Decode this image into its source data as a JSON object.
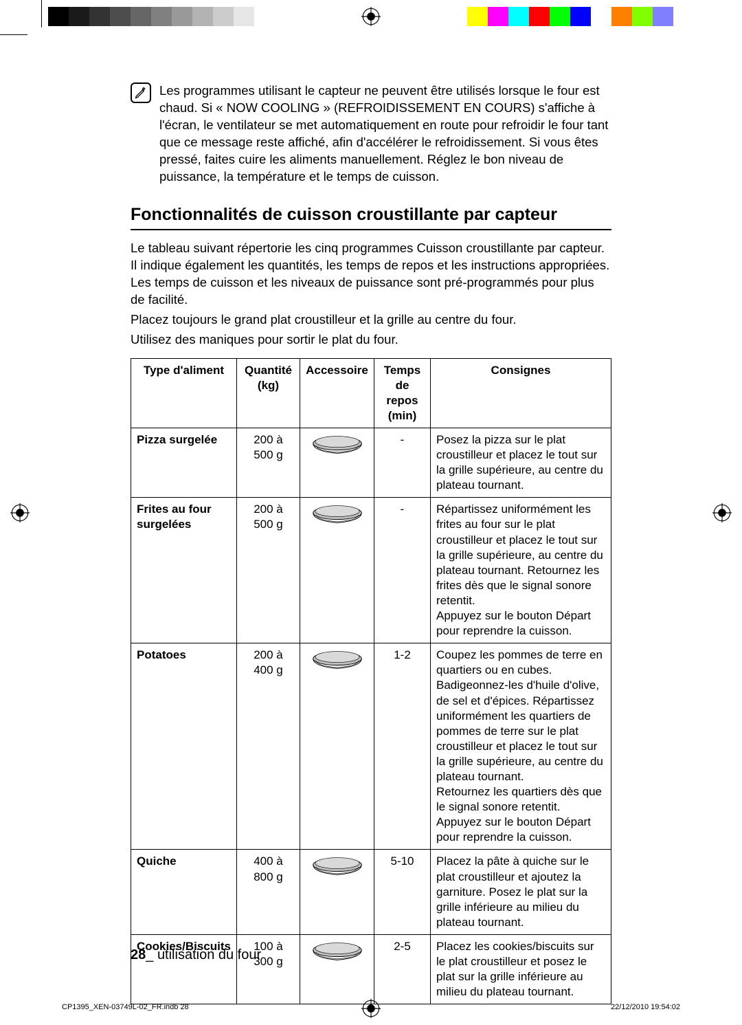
{
  "calibration": {
    "grayscale": [
      "#000000",
      "#1a1a1a",
      "#333333",
      "#4d4d4d",
      "#666666",
      "#808080",
      "#999999",
      "#b3b3b3",
      "#cccccc",
      "#e6e6e6",
      "#ffffff"
    ],
    "colors": [
      "#ffff00",
      "#ff00ff",
      "#00ffff",
      "#ff0000",
      "#00ff00",
      "#0000ff",
      "#ffffff",
      "#ff8000",
      "#80ff00",
      "#8080ff",
      "#ffffff"
    ]
  },
  "note": {
    "icon_name": "pencil-in-box-icon",
    "text": "Les programmes utilisant le capteur ne peuvent être utilisés lorsque le four est chaud. Si « NOW COOLING » (REFROIDISSEMENT EN COURS) s'affiche à l'écran, le ventilateur se met automatiquement en route pour refroidir le four tant que ce message reste affiché, afin d'accélérer le refroidissement. Si vous êtes pressé, faites cuire les aliments manuellement. Réglez le bon niveau de puissance, la température et le temps de cuisson."
  },
  "heading": "Fonctionnalités de cuisson croustillante par capteur",
  "intro": [
    "Le tableau suivant répertorie les cinq programmes Cuisson croustillante par capteur. Il indique également les quantités, les temps de repos et les instructions appropriées. Les temps de cuisson et les niveaux de puissance sont pré-programmés pour plus de facilité.",
    "Placez toujours le grand plat croustilleur et la grille au centre du four.",
    "Utilisez des maniques pour sortir le plat du four."
  ],
  "table": {
    "headers": {
      "type": "Type d'aliment",
      "qty": "Quantité (kg)",
      "acc": "Accessoire",
      "time": "Temps de repos (min)",
      "instr": "Consignes"
    },
    "rows": [
      {
        "type": "Pizza surgelée",
        "qty": "200 à 500 g",
        "time": "-",
        "instr": "Posez la pizza sur le plat croustilleur et placez le tout sur la grille supérieure, au centre du plateau tournant."
      },
      {
        "type": "Frites au four surgelées",
        "qty": "200 à 500 g",
        "time": "-",
        "instr": "Répartissez uniformément les frites au four sur le plat croustilleur et placez le tout sur la grille supérieure, au centre du plateau tournant. Retournez les frites dès que le signal sonore retentit.\nAppuyez sur le bouton Départ pour reprendre la cuisson."
      },
      {
        "type": "Potatoes",
        "qty": "200 à 400 g",
        "time": "1-2",
        "instr": "Coupez les pommes de terre en quartiers ou en cubes. Badigeonnez-les d'huile d'olive, de sel et d'épices. Répartissez uniformément les quartiers de pommes de terre sur le plat croustilleur et placez le tout sur la grille supérieure, au centre du plateau tournant.\nRetournez les quartiers dès que le signal sonore retentit. Appuyez sur le bouton Départ pour reprendre la cuisson."
      },
      {
        "type": "Quiche",
        "qty": "400 à 800 g",
        "time": "5-10",
        "instr": "Placez la pâte à quiche sur le plat croustilleur et ajoutez la garniture. Posez le plat sur la grille inférieure au milieu du plateau tournant."
      },
      {
        "type": "Cookies/Biscuits",
        "qty": "100 à 300 g",
        "time": "2-5",
        "instr": "Placez les cookies/biscuits sur le plat croustilleur et posez le plat sur la grille inférieure au milieu du plateau tournant."
      }
    ]
  },
  "footer": {
    "page_num": "28",
    "sep": "_ ",
    "section": "utilisation du four"
  },
  "print_info": {
    "file": "CP1395_XEN-03749L-02_FR.indb   28",
    "timestamp": "22/12/2010   19:54:02"
  }
}
